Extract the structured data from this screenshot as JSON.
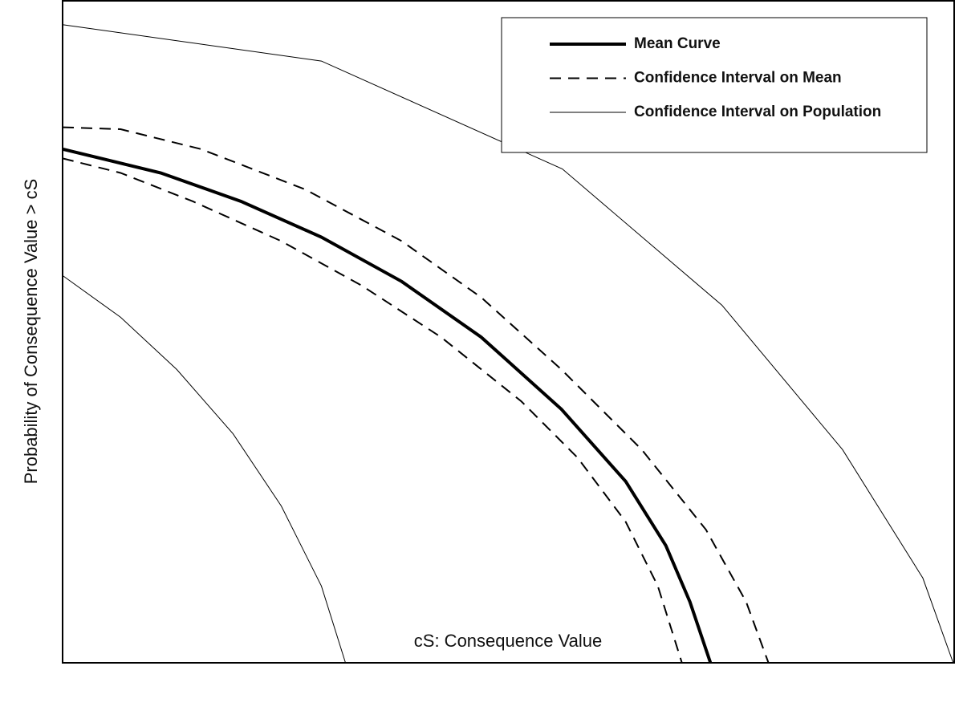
{
  "chart_data": {
    "type": "line",
    "x_label": "cS:  Consequence Value",
    "y_label": "Probability of Consequence Value > cS",
    "xlim": [
      0,
      1
    ],
    "ylim": [
      0,
      1
    ],
    "legend": "upper right",
    "series": [
      {
        "name": "Mean Curve",
        "color": "#000000",
        "linestyle": "solid",
        "linewidth": 4,
        "x": [
          0,
          0.11,
          0.2,
          0.29,
          0.38,
          0.469,
          0.559,
          0.631,
          0.676,
          0.703,
          0.726
        ],
        "values": [
          0.776,
          0.74,
          0.697,
          0.643,
          0.576,
          0.492,
          0.383,
          0.274,
          0.177,
          0.092,
          0
        ]
      },
      {
        "name": "Confidence Interval on Mean",
        "color": "#000000",
        "linestyle": "dashed",
        "linewidth": 2,
        "x": [
          0,
          0.065,
          0.155,
          0.272,
          0.38,
          0.469,
          0.559,
          0.649,
          0.721,
          0.766,
          0.791
        ],
        "values": [
          0.809,
          0.806,
          0.776,
          0.715,
          0.637,
          0.552,
          0.443,
          0.322,
          0.201,
          0.092,
          0
        ]
      },
      {
        "name": "Confidence Interval on Population",
        "color": "#000000",
        "linestyle": "solid",
        "linewidth": 1,
        "x": [
          0,
          0.29,
          0.56,
          0.739,
          0.874,
          0.964,
          0.998
        ],
        "values": [
          0.964,
          0.909,
          0.746,
          0.54,
          0.322,
          0.128,
          0
        ]
      },
      {
        "color": "#000000",
        "linestyle": "dashed",
        "linewidth": 2,
        "x": [
          0,
          0.065,
          0.146,
          0.245,
          0.335,
          0.424,
          0.514,
          0.577,
          0.631,
          0.667,
          0.694
        ],
        "values": [
          0.762,
          0.74,
          0.697,
          0.637,
          0.57,
          0.492,
          0.395,
          0.31,
          0.213,
          0.116,
          0
        ]
      },
      {
        "color": "#000000",
        "linestyle": "solid",
        "linewidth": 1,
        "x": [
          0,
          0.065,
          0.128,
          0.191,
          0.245,
          0.29,
          0.317
        ],
        "values": [
          0.585,
          0.522,
          0.443,
          0.346,
          0.237,
          0.116,
          0
        ]
      }
    ]
  }
}
